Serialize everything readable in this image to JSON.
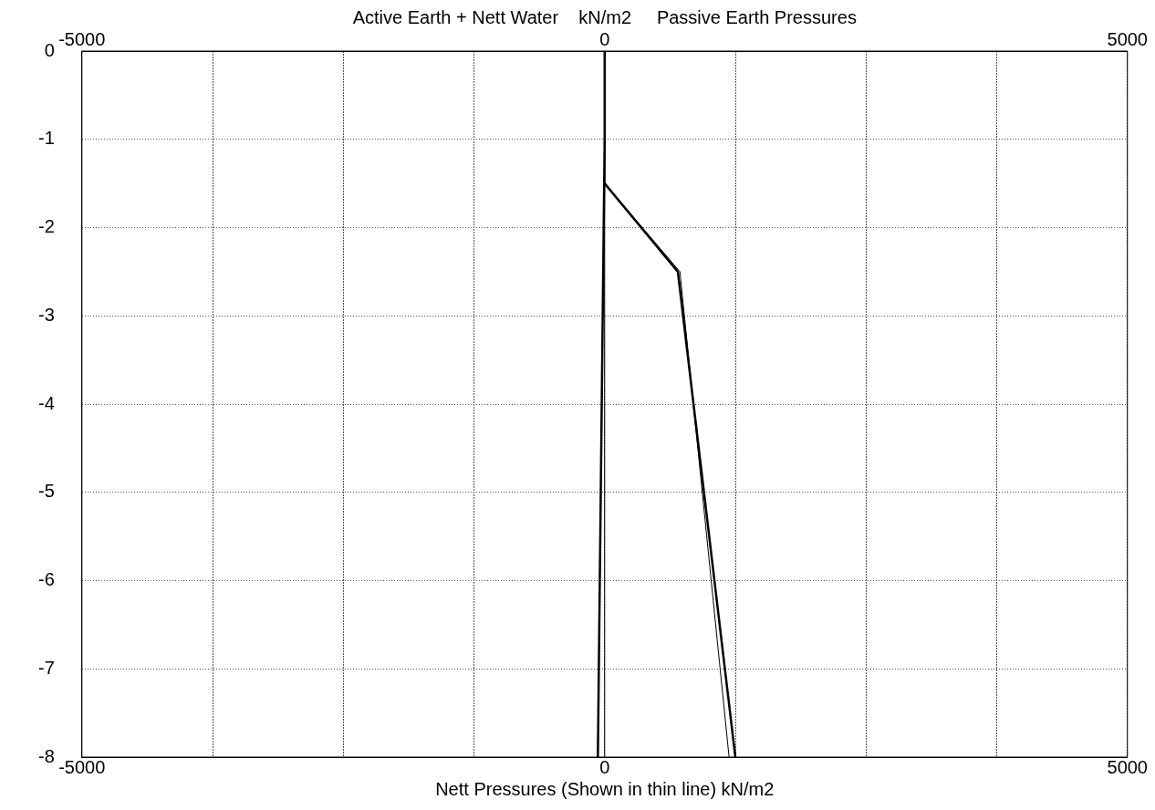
{
  "chart_data": {
    "type": "line",
    "x2label": "Active Earth + Nett Water    kN/m2     Passive Earth Pressures",
    "xlabel": "Nett Pressures (Shown in thin line) kN/m2",
    "xlim": [
      -5000,
      5000
    ],
    "xticks": [
      -5000,
      {
        "value": -3750,
        "label": null
      },
      {
        "value": -2500,
        "label": null
      },
      {
        "value": -1250,
        "label": null
      },
      0,
      {
        "value": 1250,
        "label": null
      },
      {
        "value": 2500,
        "label": null
      },
      {
        "value": 3750,
        "label": null
      },
      5000
    ],
    "x2lim": [
      -5000,
      5000
    ],
    "x2ticks": [
      -5000,
      {
        "value": -3750,
        "label": null
      },
      {
        "value": -2500,
        "label": null
      },
      {
        "value": -1250,
        "label": null
      },
      0,
      {
        "value": 1250,
        "label": null
      },
      {
        "value": 2500,
        "label": null
      },
      {
        "value": 3750,
        "label": null
      },
      5000
    ],
    "ylim": [
      -8,
      0
    ],
    "yticks": [
      0,
      -1,
      -2,
      -3,
      -4,
      -5,
      -6,
      -7,
      -8
    ],
    "series": [
      {
        "color": "#000000",
        "axis": "x2",
        "x": [
          0,
          0,
          -65
        ],
        "values": [
          0,
          -1,
          -8
        ]
      },
      {
        "color": "#000000",
        "axis": "x2",
        "x": [
          0,
          700,
          1250
        ],
        "values": [
          -1.5,
          -2.5,
          -8
        ]
      },
      {
        "color": "#000000",
        "x": [
          0,
          0,
          720,
          1190
        ],
        "values": [
          0,
          -1.5,
          -2.5,
          -8
        ]
      }
    ],
    "ref_lines": [
      {
        "axis": "x",
        "value": 0,
        "color": "#000000"
      }
    ],
    "grid": true,
    "legend": false,
    "marker": "none",
    "line_style": "solid"
  }
}
